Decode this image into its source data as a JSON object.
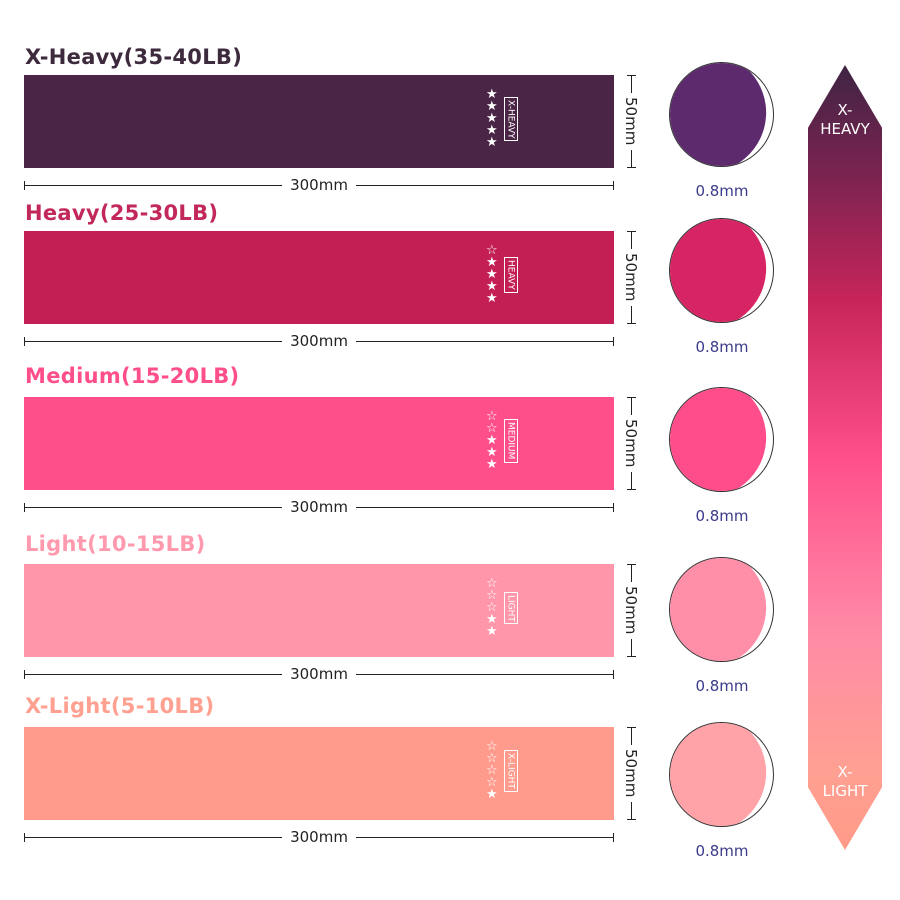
{
  "bands": [
    {
      "title": "X-Heavy(35-40LB)",
      "label": "X-HEAVY",
      "stars_filled": 5,
      "stars_total": 5,
      "length": "300mm",
      "width": "50mm",
      "thickness": "0.8mm",
      "color": "#4a2545",
      "title_color": "#3d2a3d",
      "circle_color": "#5e2a6e"
    },
    {
      "title": "Heavy(25-30LB)",
      "label": "HEAVY",
      "stars_filled": 4,
      "stars_total": 5,
      "length": "300mm",
      "width": "50mm",
      "thickness": "0.8mm",
      "color": "#c31f55",
      "title_color": "#c2285a",
      "circle_color": "#d62464"
    },
    {
      "title": "Medium(15-20LB)",
      "label": "MEDIUM",
      "stars_filled": 3,
      "stars_total": 5,
      "length": "300mm",
      "width": "50mm",
      "thickness": "0.8mm",
      "color": "#ff4f8b",
      "title_color": "#ff4f8b",
      "circle_color": "#ff4d8c"
    },
    {
      "title": "Light(10-15LB)",
      "label": "LIGHT",
      "stars_filled": 2,
      "stars_total": 5,
      "length": "300mm",
      "width": "50mm",
      "thickness": "0.8mm",
      "color": "#ff96a9",
      "title_color": "#ff9aae",
      "circle_color": "#ff8fa8"
    },
    {
      "title": "X-Light(5-10LB)",
      "label": "X-LIGHT",
      "stars_filled": 1,
      "stars_total": 5,
      "length": "300mm",
      "width": "50mm",
      "thickness": "0.8mm",
      "color": "#ff9b8d",
      "title_color": "#ffa090",
      "circle_color": "#ffa3a8"
    }
  ],
  "scale": {
    "top": "X-\nHEAVY",
    "top_lines": [
      "X-",
      "HEAVY"
    ],
    "bottom_lines": [
      "X-",
      "LIGHT"
    ]
  }
}
